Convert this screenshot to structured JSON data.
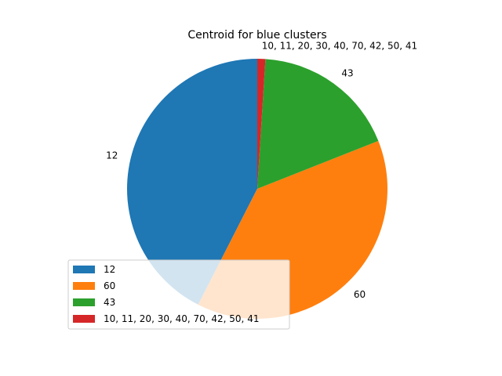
{
  "chart_data": {
    "type": "pie",
    "title": "Centroid for blue clusters",
    "labels": [
      "12",
      "60",
      "43",
      " 10, 11, 20, 30, 40, 70, 42, 50, 41"
    ],
    "values": [
      42.5,
      38.5,
      18.0,
      1.0
    ],
    "colors": [
      "#1f77b4",
      "#ff7f0e",
      "#2ca02c",
      "#d62728"
    ],
    "start_angle_deg": 90,
    "direction": "counterclockwise",
    "legend": {
      "placement": "lower-left",
      "entries": [
        "12",
        "60",
        "43",
        " 10, 11, 20, 30, 40, 70, 42, 50, 41"
      ]
    }
  }
}
